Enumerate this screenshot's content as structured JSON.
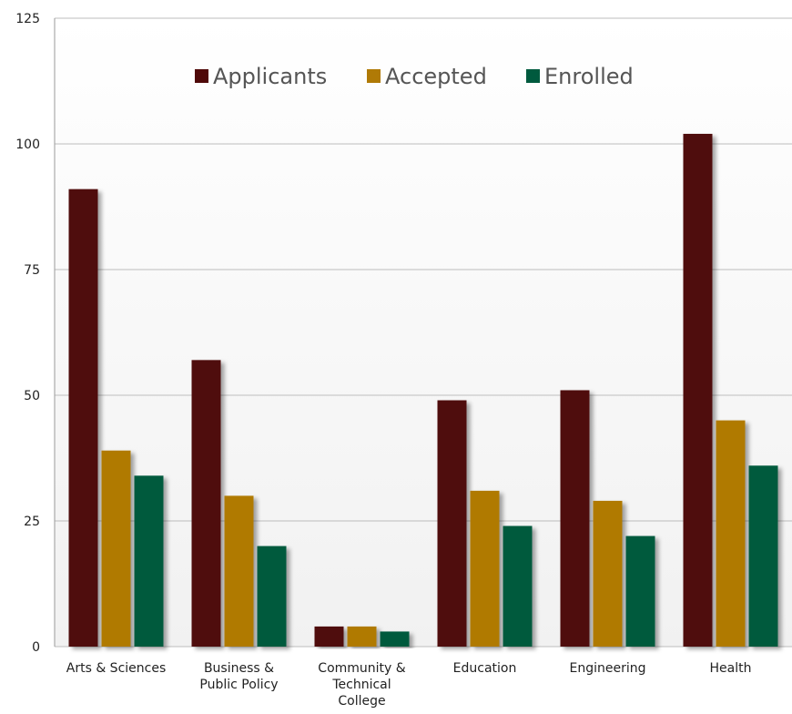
{
  "chart_data": {
    "type": "bar",
    "title": "",
    "xlabel": "",
    "ylabel": "",
    "categories": [
      [
        "Arts & Sciences"
      ],
      [
        "Business &",
        "Public Policy"
      ],
      [
        "Community &",
        "Technical",
        "College"
      ],
      [
        "Education"
      ],
      [
        "Engineering"
      ],
      [
        "Health"
      ]
    ],
    "series": [
      {
        "name": "Applicants",
        "color": "#4f0909",
        "values": [
          91,
          57,
          4,
          49,
          51,
          102
        ]
      },
      {
        "name": "Accepted",
        "color": "#b07a06",
        "values": [
          39,
          30,
          4,
          31,
          29,
          45
        ]
      },
      {
        "name": "Enrolled",
        "color": "#005a3e",
        "values": [
          34,
          20,
          3,
          24,
          22,
          36
        ]
      }
    ],
    "ylim": [
      0,
      125
    ],
    "yticks": [
      "0",
      "25",
      "50",
      "75",
      "100",
      "125"
    ],
    "grid": true,
    "legend_position": "top-center"
  }
}
